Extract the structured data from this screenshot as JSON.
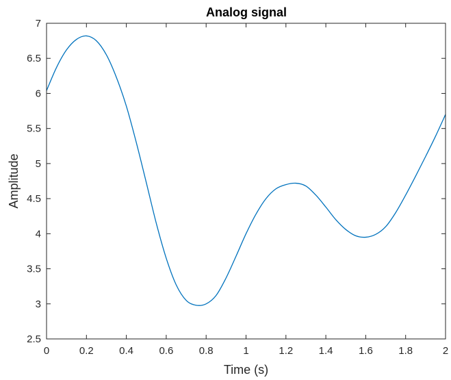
{
  "chart_data": {
    "type": "line",
    "title": "Analog signal",
    "xlabel": "Time (s)",
    "ylabel": "Amplitude",
    "xlim": [
      0,
      2
    ],
    "ylim": [
      2.5,
      7
    ],
    "x_ticks": [
      0,
      0.2,
      0.4,
      0.6,
      0.8,
      1,
      1.2,
      1.4,
      1.6,
      1.8,
      2
    ],
    "x_tick_labels": [
      "0",
      "0.2",
      "0.4",
      "0.6",
      "0.8",
      "1",
      "1.2",
      "1.4",
      "1.6",
      "1.8",
      "2"
    ],
    "y_ticks": [
      2.5,
      3,
      3.5,
      4,
      4.5,
      5,
      5.5,
      6,
      6.5,
      7
    ],
    "y_tick_labels": [
      "2.5",
      "3",
      "3.5",
      "4",
      "4.5",
      "5",
      "5.5",
      "6",
      "6.5",
      "7"
    ],
    "grid": false,
    "series": [
      {
        "color": "#0072bd",
        "x": [
          0,
          0.05,
          0.1,
          0.15,
          0.2,
          0.25,
          0.3,
          0.35,
          0.4,
          0.45,
          0.5,
          0.55,
          0.6,
          0.65,
          0.7,
          0.75,
          0.8,
          0.85,
          0.9,
          0.95,
          1.0,
          1.05,
          1.1,
          1.15,
          1.2,
          1.25,
          1.3,
          1.35,
          1.4,
          1.45,
          1.5,
          1.55,
          1.6,
          1.65,
          1.7,
          1.75,
          1.8,
          1.85,
          1.9,
          1.95,
          2.0
        ],
        "values": [
          6.04,
          6.37,
          6.62,
          6.77,
          6.82,
          6.75,
          6.55,
          6.23,
          5.82,
          5.3,
          4.73,
          4.15,
          3.65,
          3.27,
          3.05,
          2.98,
          3.0,
          3.12,
          3.37,
          3.68,
          4.0,
          4.28,
          4.5,
          4.64,
          4.7,
          4.72,
          4.68,
          4.55,
          4.38,
          4.2,
          4.06,
          3.97,
          3.95,
          3.99,
          4.1,
          4.3,
          4.55,
          4.82,
          5.1,
          5.39,
          5.7
        ]
      }
    ]
  }
}
